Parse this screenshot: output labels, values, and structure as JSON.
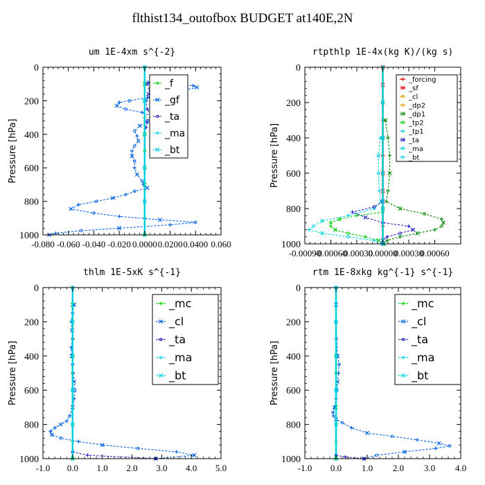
{
  "figure_title": "flthist134_outofbox  BUDGET at140E,2N",
  "colors": {
    "green": "#00cc00",
    "blue": "#0060e0",
    "cyan": "#00d0e0",
    "navy": "#2020c0",
    "red": "#e00000",
    "darkgreen": "#008800"
  },
  "chart_data": [
    {
      "type": "line",
      "title": "um   1E-4xm s^{-2}",
      "ylabel": "Pressure [hPa]",
      "xlim": [
        -0.08,
        0.06
      ],
      "ylim": [
        1000,
        0
      ],
      "x_ticks": [
        -0.08,
        -0.06,
        -0.04,
        -0.02,
        0.0,
        0.02,
        0.04,
        0.06
      ],
      "x_tick_labels": [
        "-0.080",
        "-0.060",
        "-0.040",
        "-0.020",
        "0.0000",
        "0.0200",
        "0.0400",
        "0.060"
      ],
      "y_ticks": [
        0,
        200,
        400,
        600,
        800,
        1000
      ],
      "legend": [
        "_f",
        "_gf",
        "_ta",
        "_ma",
        "_bt"
      ],
      "series": [
        {
          "name": "_f",
          "color": "green",
          "pressure": [
            0,
            100,
            200,
            300,
            400,
            500,
            600,
            700,
            800,
            900,
            1000
          ],
          "values": [
            0,
            0,
            0,
            0,
            0,
            0,
            0,
            0,
            0,
            0,
            0
          ]
        },
        {
          "name": "_gf",
          "color": "blue",
          "pressure": [
            90,
            100,
            110,
            120,
            140,
            160,
            180,
            200,
            210,
            230,
            250,
            270,
            290,
            310,
            330,
            350,
            380,
            410,
            440,
            470,
            500,
            530,
            560,
            600,
            640,
            680,
            700,
            720,
            740,
            760,
            780,
            800,
            820,
            845,
            870,
            890,
            910,
            925,
            940,
            960,
            975,
            990,
            1000
          ],
          "values": [
            0.003,
            0.02,
            0.038,
            0.041,
            0.03,
            0.018,
            0.003,
            -0.012,
            -0.02,
            -0.022,
            -0.015,
            -0.002,
            0.005,
            0.008,
            0.002,
            -0.004,
            -0.008,
            -0.006,
            -0.005,
            -0.008,
            -0.01,
            -0.01,
            -0.008,
            -0.008,
            -0.006,
            -0.002,
            -0.001,
            0.002,
            -0.008,
            -0.015,
            -0.025,
            -0.038,
            -0.052,
            -0.058,
            -0.04,
            -0.02,
            0.012,
            0.04,
            0.02,
            -0.02,
            -0.05,
            -0.07,
            -0.075
          ]
        },
        {
          "name": "_ta",
          "color": "navy",
          "pressure": [
            100,
            130,
            160,
            200,
            250,
            290,
            320,
            360
          ],
          "values": [
            0.002,
            0.004,
            0.003,
            0.001,
            0.002,
            0.005,
            0.002,
            0.001
          ]
        },
        {
          "name": "_ma",
          "color": "cyan",
          "pressure": [
            0,
            200,
            400,
            600,
            800,
            1000
          ],
          "values": [
            0,
            0,
            0,
            0,
            0,
            0
          ]
        },
        {
          "name": "_bt",
          "color": "cyan",
          "pressure": [
            0,
            200,
            400,
            600,
            800,
            1000
          ],
          "values": [
            0,
            0,
            0,
            0,
            0,
            0
          ]
        }
      ]
    },
    {
      "type": "line",
      "title": "rtpthlp   1E-4x(kg K)/(kg s)",
      "ylabel": "Pressure [hPa]",
      "xlim": [
        -0.0009,
        0.0009
      ],
      "ylim": [
        1000,
        0
      ],
      "x_ticks": [
        -0.0009,
        -0.0006,
        -0.0003,
        0.0,
        0.0003,
        0.0006
      ],
      "x_tick_labels": [
        "-0.00090",
        "-0.00060",
        "-0.00030",
        "0.00000",
        "0.00030",
        "0.00060"
      ],
      "y_ticks": [
        0,
        200,
        400,
        600,
        800,
        1000
      ],
      "legend": [
        "_forcing",
        "_sf",
        "_cl",
        "_dp2",
        "_dp1",
        "_tp2",
        "_tp1",
        "_ta",
        "_ma",
        "_bt"
      ],
      "series": [
        {
          "name": "_forcing",
          "color": "red",
          "pressure": [
            0,
            100,
            200,
            300,
            400,
            500,
            600,
            700,
            800,
            900,
            1000
          ],
          "values": [
            0,
            0,
            0,
            0,
            0,
            0,
            0,
            0,
            0,
            0,
            0
          ]
        },
        {
          "name": "_sf",
          "color": "red",
          "pressure": [
            0,
            200,
            400,
            600,
            800,
            1000
          ],
          "values": [
            0,
            0,
            0,
            0,
            0,
            0
          ]
        },
        {
          "name": "_cl",
          "color": "#e0a000",
          "pressure": [
            0,
            200,
            400,
            600,
            800,
            1000
          ],
          "values": [
            0,
            0,
            0,
            0,
            0,
            0
          ]
        },
        {
          "name": "_dp2",
          "color": "#e0a000",
          "pressure": [
            0,
            200,
            400,
            600,
            800,
            1000
          ],
          "values": [
            0,
            0,
            0,
            0,
            0,
            0
          ]
        },
        {
          "name": "_dp1",
          "color": "darkgreen",
          "pressure": [
            300,
            400,
            500,
            600,
            700,
            760,
            800,
            830,
            860,
            880,
            900,
            920,
            940,
            960,
            980,
            1000
          ],
          "values": [
            3e-05,
            6e-05,
            8e-05,
            8e-05,
            6e-05,
            4e-05,
            0.0002,
            0.00048,
            0.00068,
            0.0007,
            0.00068,
            0.0006,
            0.0004,
            0.0002,
            5e-05,
            1e-05
          ]
        },
        {
          "name": "_tp2",
          "color": "green",
          "pressure": [
            820,
            840,
            860,
            880,
            900,
            920,
            940,
            960,
            980,
            1000
          ],
          "values": [
            0.0,
            -0.0003,
            -0.0005,
            -0.0006,
            -0.0006,
            -0.00055,
            -0.0004,
            -0.0002,
            -5e-05,
            0.0
          ]
        },
        {
          "name": "_tp1",
          "color": "cyan",
          "pressure": [
            400,
            500,
            600,
            700,
            760,
            800,
            840,
            870,
            900,
            920,
            940,
            960,
            980,
            1000
          ],
          "values": [
            -3e-05,
            -5e-05,
            -5e-05,
            -4e-05,
            -2e-05,
            -0.0001,
            -0.0004,
            -0.0007,
            -0.0008,
            -0.00085,
            -0.0007,
            -0.0004,
            -0.0001,
            0.0
          ]
        },
        {
          "name": "_ta",
          "color": "navy",
          "pressure": [
            760,
            790,
            820,
            850,
            880,
            900,
            920,
            940,
            960,
            980,
            1000
          ],
          "values": [
            0.0,
            -0.0001,
            -0.00035,
            -0.0002,
            0.0,
            0.0003,
            0.00035,
            0.0002,
            5e-05,
            0.0,
            0.0
          ]
        },
        {
          "name": "_ma",
          "color": "cyan",
          "pressure": [
            0,
            200,
            400,
            600,
            800,
            1000
          ],
          "values": [
            0,
            0,
            0,
            0,
            0,
            0
          ]
        },
        {
          "name": "_bt",
          "color": "cyan",
          "pressure": [
            0,
            200,
            400,
            600,
            800,
            1000
          ],
          "values": [
            0,
            0,
            0,
            0,
            0,
            0
          ]
        }
      ]
    },
    {
      "type": "line",
      "title": "thlm   1E-5xK s^{-1}",
      "ylabel": "Pressure [hPa]",
      "xlim": [
        -1.0,
        5.0
      ],
      "ylim": [
        1000,
        0
      ],
      "x_ticks": [
        -1,
        0,
        1,
        2,
        3,
        4,
        5
      ],
      "x_tick_labels": [
        "-1.0",
        "0.0",
        "1.0",
        "2.0",
        "3.0",
        "4.0",
        "5.0"
      ],
      "y_ticks": [
        0,
        200,
        400,
        600,
        800,
        1000
      ],
      "legend": [
        "_mc",
        "_cl",
        "_ta",
        "_ma",
        "_bt"
      ],
      "series": [
        {
          "name": "_mc",
          "color": "green",
          "pressure": [
            0,
            100,
            200,
            300,
            400,
            500,
            600,
            700,
            800,
            900,
            1000
          ],
          "values": [
            0,
            0,
            0,
            0,
            0,
            0,
            0,
            0,
            0,
            0,
            0
          ]
        },
        {
          "name": "_cl",
          "color": "blue",
          "pressure": [
            100,
            150,
            200,
            250,
            300,
            350,
            400,
            450,
            500,
            550,
            600,
            650,
            700,
            750,
            780,
            800,
            820,
            840,
            860,
            880,
            900,
            920,
            940,
            960,
            980,
            1000
          ],
          "values": [
            0.05,
            0.0,
            -0.05,
            -0.02,
            0.0,
            -0.05,
            -0.03,
            0.0,
            0.02,
            0.05,
            0.08,
            0.05,
            0.0,
            -0.1,
            -0.2,
            -0.4,
            -0.6,
            -0.75,
            -0.7,
            -0.4,
            0.2,
            1.0,
            2.2,
            3.5,
            4.1,
            2.8
          ]
        },
        {
          "name": "_ta",
          "color": "navy",
          "pressure": [
            960,
            980,
            1000
          ],
          "values": [
            0.0,
            0.5,
            2.8
          ]
        },
        {
          "name": "_ma",
          "color": "cyan",
          "pressure": [
            0,
            200,
            400,
            600,
            800,
            1000
          ],
          "values": [
            0,
            0,
            0,
            0,
            0,
            0
          ]
        },
        {
          "name": "_bt",
          "color": "cyan",
          "pressure": [
            0,
            200,
            400,
            600,
            800,
            1000
          ],
          "values": [
            0,
            0,
            0,
            0,
            0,
            0
          ]
        }
      ]
    },
    {
      "type": "line",
      "title": "rtm   1E-8xkg kg^{-1} s^{-1}",
      "ylabel": "Pressure [hPa]",
      "xlim": [
        -1.0,
        4.0
      ],
      "ylim": [
        1000,
        0
      ],
      "x_ticks": [
        -1,
        0,
        1,
        2,
        3,
        4
      ],
      "x_tick_labels": [
        "-1.0",
        "0.0",
        "1.0",
        "2.0",
        "3.0",
        "4.0"
      ],
      "y_ticks": [
        0,
        200,
        400,
        600,
        800,
        1000
      ],
      "legend": [
        "_mc",
        "_cl",
        "_ta",
        "_ma",
        "_bt"
      ],
      "series": [
        {
          "name": "_mc",
          "color": "green",
          "pressure": [
            0,
            100,
            200,
            300,
            400,
            500,
            600,
            700,
            800,
            900,
            1000
          ],
          "values": [
            0,
            0,
            0,
            0,
            0,
            0,
            0,
            0,
            0,
            0,
            0
          ]
        },
        {
          "name": "_cl",
          "color": "blue",
          "pressure": [
            100,
            200,
            300,
            400,
            450,
            500,
            550,
            600,
            650,
            700,
            730,
            750,
            770,
            790,
            820,
            850,
            870,
            890,
            910,
            925,
            940,
            960,
            980,
            1000
          ],
          "values": [
            0.0,
            0.0,
            0.02,
            0.05,
            0.1,
            0.08,
            0.05,
            0.03,
            0.0,
            -0.05,
            -0.1,
            -0.08,
            0.0,
            0.2,
            0.5,
            1.0,
            1.8,
            2.6,
            3.3,
            3.65,
            3.2,
            2.2,
            1.3,
            0.9
          ]
        },
        {
          "name": "_ta",
          "color": "navy",
          "pressure": [
            980,
            990,
            1000
          ],
          "values": [
            0.0,
            0.3,
            0.9
          ]
        },
        {
          "name": "_ma",
          "color": "cyan",
          "pressure": [
            0,
            200,
            400,
            600,
            800,
            1000
          ],
          "values": [
            0,
            0,
            0,
            0,
            0,
            0
          ]
        },
        {
          "name": "_bt",
          "color": "cyan",
          "pressure": [
            0,
            200,
            400,
            600,
            800,
            1000
          ],
          "values": [
            0,
            0,
            0,
            0,
            0,
            0
          ]
        }
      ]
    }
  ]
}
